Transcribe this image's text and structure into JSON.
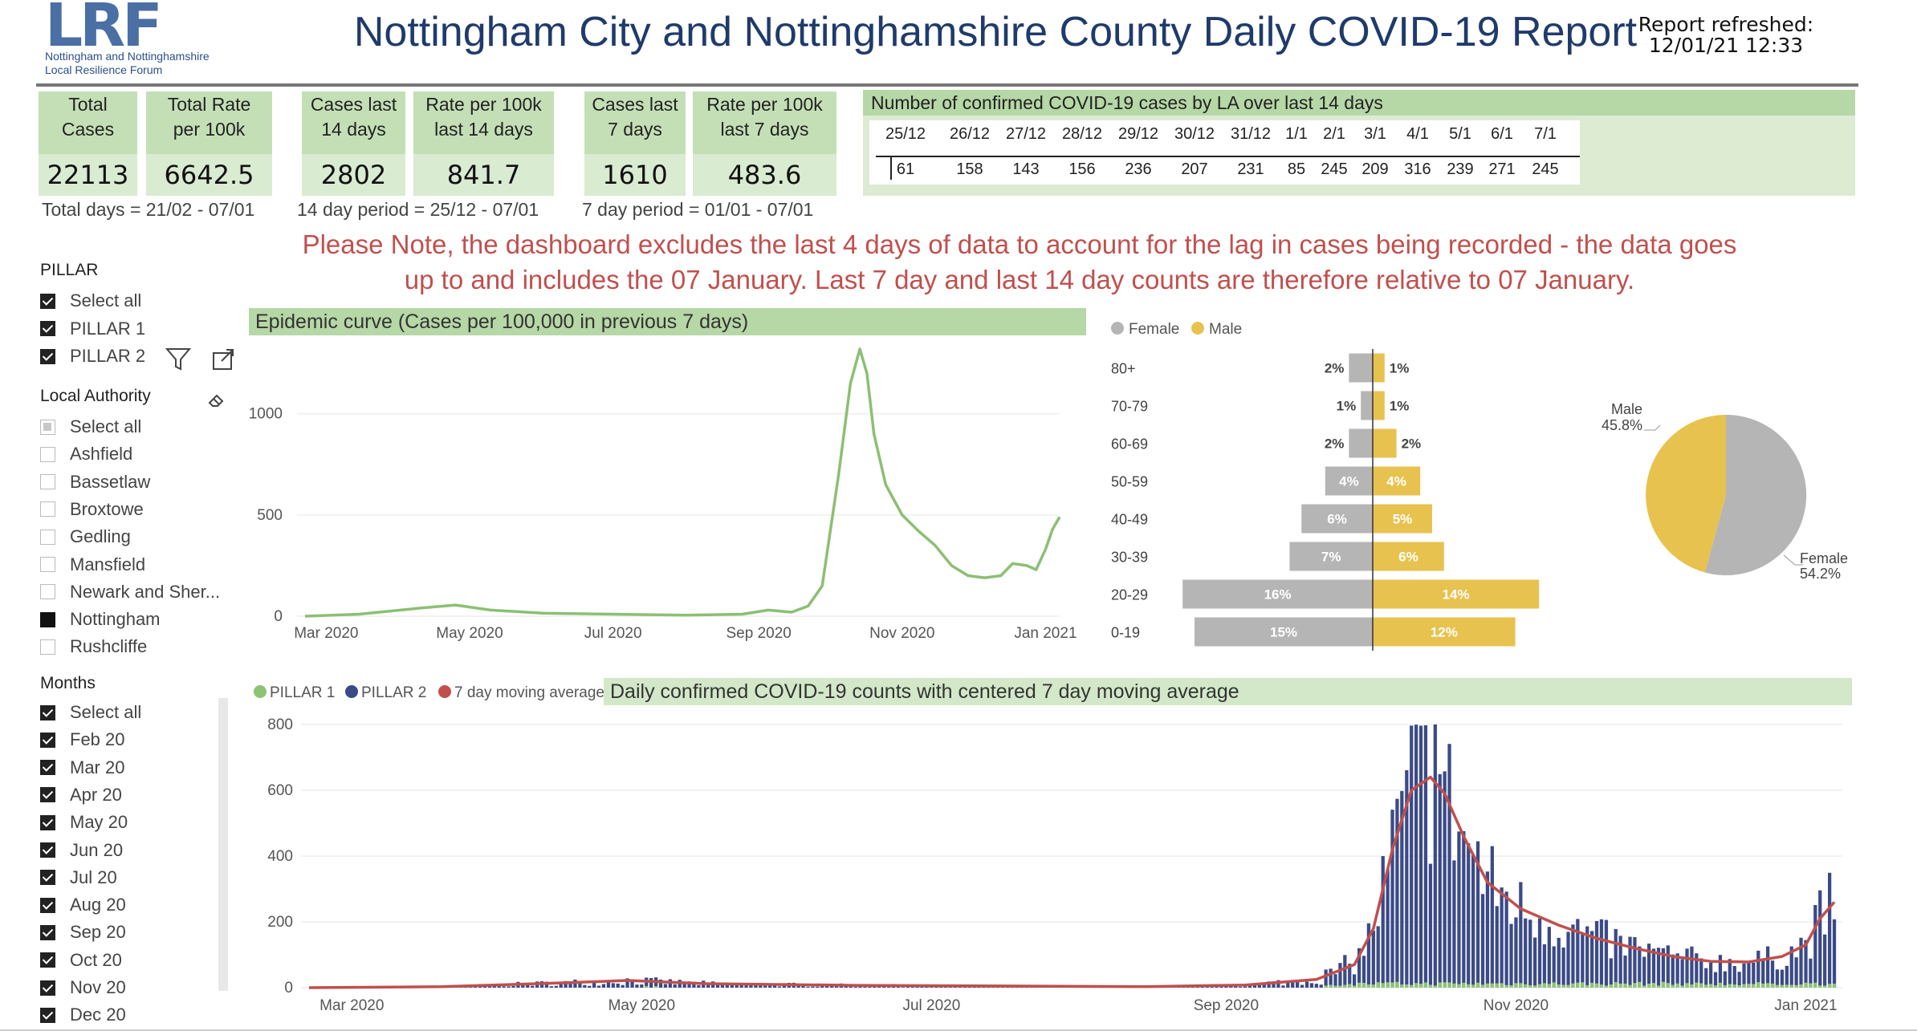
{
  "header": {
    "logo_mark": "LRF",
    "logo_sub_1": "Nottingham and Nottinghamshire",
    "logo_sub_2": "Local Resilience Forum",
    "title": "Nottingham City and Nottinghamshire County Daily COVID-19 Report",
    "refresh_label": "Report refreshed:",
    "refresh_value": "12/01/21 12:33"
  },
  "kpis": [
    {
      "label_1": "Total",
      "label_2": "Cases",
      "value": "22113"
    },
    {
      "label_1": "Total Rate",
      "label_2": "per 100k",
      "value": "6642.5"
    },
    {
      "label_1": "Cases last",
      "label_2": "14 days",
      "value": "2802"
    },
    {
      "label_1": "Rate per 100k",
      "label_2": "last 14 days",
      "value": "841.7"
    },
    {
      "label_1": "Cases last",
      "label_2": "7 days",
      "value": "1610"
    },
    {
      "label_1": "Rate per 100k",
      "label_2": "last 7 days",
      "value": "483.6"
    }
  ],
  "periods": {
    "total": "Total days = 21/02 - 07/01",
    "fourteen": "14 day period = 25/12 - 07/01",
    "seven": "7 day period = 01/01 - 07/01"
  },
  "la_table": {
    "title": "Number of confirmed COVID-19 cases by LA over last 14 days",
    "dates": [
      "25/12",
      "26/12",
      "27/12",
      "28/12",
      "29/12",
      "30/12",
      "31/12",
      "1/1",
      "2/1",
      "3/1",
      "4/1",
      "5/1",
      "6/1",
      "7/1"
    ],
    "values": [
      "61",
      "158",
      "143",
      "156",
      "236",
      "207",
      "231",
      "85",
      "245",
      "209",
      "316",
      "239",
      "271",
      "245"
    ]
  },
  "note": {
    "line_1": "Please Note, the dashboard excludes the last 4 days of data to account for the lag in cases being recorded - the data goes",
    "line_2": "up to and includes the 07 January. Last 7 day and last 14 day counts are therefore relative to 07 January."
  },
  "slicers": {
    "pillar": {
      "heading": "PILLAR",
      "items": [
        {
          "label": "Select all",
          "state": "checked"
        },
        {
          "label": "PILLAR 1",
          "state": "checked"
        },
        {
          "label": "PILLAR 2",
          "state": "checked"
        }
      ]
    },
    "la": {
      "heading": "Local Authority",
      "items": [
        {
          "label": "Select all",
          "state": "partial"
        },
        {
          "label": "Ashfield",
          "state": "empty"
        },
        {
          "label": "Bassetlaw",
          "state": "empty"
        },
        {
          "label": "Broxtowe",
          "state": "empty"
        },
        {
          "label": "Gedling",
          "state": "empty"
        },
        {
          "label": "Mansfield",
          "state": "empty"
        },
        {
          "label": "Newark and Sher...",
          "state": "empty"
        },
        {
          "label": "Nottingham",
          "state": "filled"
        },
        {
          "label": "Rushcliffe",
          "state": "empty"
        }
      ]
    },
    "months": {
      "heading": "Months",
      "items": [
        {
          "label": "Select all",
          "state": "checked"
        },
        {
          "label": "Feb 20",
          "state": "checked"
        },
        {
          "label": "Mar 20",
          "state": "checked"
        },
        {
          "label": "Apr 20",
          "state": "checked"
        },
        {
          "label": "May 20",
          "state": "checked"
        },
        {
          "label": "Jun 20",
          "state": "checked"
        },
        {
          "label": "Jul 20",
          "state": "checked"
        },
        {
          "label": "Aug 20",
          "state": "checked"
        },
        {
          "label": "Sep 20",
          "state": "checked"
        },
        {
          "label": "Oct 20",
          "state": "checked"
        },
        {
          "label": "Nov 20",
          "state": "checked"
        },
        {
          "label": "Dec 20",
          "state": "checked"
        }
      ]
    }
  },
  "colors": {
    "green_header": "#b6d7a6",
    "green_line": "#8cbf73",
    "female": "#b5b5b5",
    "male": "#e8c24f",
    "pillar1": "#8cc474",
    "pillar2": "#3b4a87",
    "moving_avg": "#c0504d"
  },
  "chart_data": [
    {
      "type": "line",
      "title": "Epidemic curve (Cases per 100,000 in previous 7 days)",
      "ylim": [
        0,
        1300
      ],
      "yticks": [
        0,
        500,
        1000
      ],
      "xtick_labels": [
        "Mar 2020",
        "May 2020",
        "Jul 2020",
        "Sep 2020",
        "Nov 2020",
        "Jan 2021"
      ],
      "x": [
        "2020-02-21",
        "2020-03-15",
        "2020-04-10",
        "2020-04-25",
        "2020-05-10",
        "2020-06-01",
        "2020-07-01",
        "2020-08-01",
        "2020-08-25",
        "2020-09-05",
        "2020-09-15",
        "2020-09-22",
        "2020-09-28",
        "2020-10-05",
        "2020-10-10",
        "2020-10-14",
        "2020-10-17",
        "2020-10-20",
        "2020-10-25",
        "2020-11-01",
        "2020-11-08",
        "2020-11-15",
        "2020-11-22",
        "2020-11-29",
        "2020-12-06",
        "2020-12-13",
        "2020-12-18",
        "2020-12-24",
        "2020-12-28",
        "2021-01-01",
        "2021-01-04",
        "2021-01-07"
      ],
      "values": [
        0,
        10,
        40,
        55,
        30,
        15,
        10,
        5,
        10,
        30,
        20,
        50,
        150,
        700,
        1150,
        1320,
        1200,
        900,
        650,
        500,
        420,
        350,
        250,
        200,
        190,
        200,
        260,
        250,
        230,
        330,
        430,
        490
      ]
    },
    {
      "type": "bar",
      "orientation": "horizontal",
      "subtype": "population-pyramid",
      "legend": [
        "Female",
        "Male"
      ],
      "categories": [
        "80+",
        "70-79",
        "60-69",
        "50-59",
        "40-49",
        "30-39",
        "20-29",
        "0-19"
      ],
      "series": [
        {
          "name": "Female",
          "values": [
            2,
            1,
            2,
            4,
            6,
            7,
            16,
            15
          ],
          "labels": [
            "2%",
            "1%",
            "2%",
            "4%",
            "6%",
            "7%",
            "16%",
            "15%"
          ]
        },
        {
          "name": "Male",
          "values": [
            1,
            1,
            2,
            4,
            5,
            6,
            14,
            12
          ],
          "labels": [
            "1%",
            "1%",
            "2%",
            "4%",
            "5%",
            "6%",
            "14%",
            "12%"
          ]
        }
      ]
    },
    {
      "type": "pie",
      "slices": [
        {
          "name": "Male",
          "value": 45.8,
          "label": "45.8%"
        },
        {
          "name": "Female",
          "value": 54.2,
          "label": "54.2%"
        }
      ]
    },
    {
      "type": "bar",
      "subtype": "stacked-with-line",
      "title": "Daily confirmed COVID-19 counts with centered 7 day moving average",
      "legend": [
        "PILLAR 1",
        "PILLAR 2",
        "7 day moving average"
      ],
      "ylim": [
        0,
        800
      ],
      "yticks": [
        0,
        200,
        400,
        600,
        800
      ],
      "xtick_labels": [
        "Mar 2020",
        "May 2020",
        "Jul 2020",
        "Sep 2020",
        "Nov 2020",
        "Jan 2021"
      ],
      "moving_average_x": [
        "2020-02-21",
        "2020-03-20",
        "2020-04-15",
        "2020-04-28",
        "2020-05-15",
        "2020-06-15",
        "2020-07-15",
        "2020-08-15",
        "2020-09-05",
        "2020-09-20",
        "2020-09-28",
        "2020-10-02",
        "2020-10-06",
        "2020-10-10",
        "2020-10-14",
        "2020-10-17",
        "2020-10-21",
        "2020-10-26",
        "2020-11-02",
        "2020-11-10",
        "2020-11-18",
        "2020-11-26",
        "2020-12-04",
        "2020-12-12",
        "2020-12-20",
        "2020-12-27",
        "2021-01-01",
        "2021-01-04",
        "2021-01-07"
      ],
      "moving_average": [
        0,
        3,
        15,
        22,
        12,
        7,
        5,
        3,
        8,
        25,
        70,
        180,
        420,
        600,
        640,
        590,
        460,
        320,
        240,
        190,
        150,
        120,
        95,
        80,
        78,
        95,
        130,
        210,
        260
      ],
      "series": [
        {
          "name": "PILLAR 1",
          "approx_daily_level": 12
        },
        {
          "name": "PILLAR 2",
          "peak_value": 800,
          "peak_date": "2020-10-15"
        }
      ]
    }
  ]
}
